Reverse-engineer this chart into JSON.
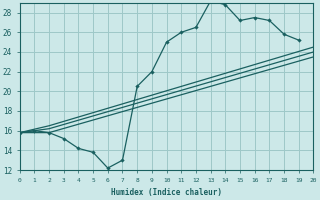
{
  "xlabel": "Humidex (Indice chaleur)",
  "bg_color": "#cce8e8",
  "grid_color": "#9ec8c8",
  "line_color": "#1a6060",
  "xlim": [
    0,
    20
  ],
  "ylim": [
    12,
    29
  ],
  "xticks": [
    0,
    1,
    2,
    3,
    4,
    5,
    6,
    7,
    8,
    9,
    10,
    11,
    12,
    13,
    14,
    15,
    16,
    17,
    18,
    19,
    20
  ],
  "yticks": [
    12,
    14,
    16,
    18,
    20,
    22,
    24,
    26,
    28
  ],
  "curve1_x": [
    0,
    1,
    2,
    3,
    4,
    5,
    6,
    7,
    8,
    9,
    10,
    11,
    12,
    13,
    14,
    15,
    16,
    17,
    18,
    19
  ],
  "curve1_y": [
    15.8,
    16.0,
    15.8,
    15.2,
    14.2,
    13.8,
    12.2,
    13.0,
    20.5,
    22.0,
    25.0,
    26.0,
    26.5,
    29.2,
    28.8,
    27.2,
    27.5,
    27.2,
    25.8,
    25.2
  ],
  "line2_x": [
    0,
    2,
    20
  ],
  "line2_y": [
    15.8,
    16.5,
    24.5
  ],
  "line3_x": [
    0,
    2,
    20
  ],
  "line3_y": [
    15.8,
    16.2,
    24.0
  ],
  "line4_x": [
    0,
    2,
    20
  ],
  "line4_y": [
    15.8,
    15.8,
    23.5
  ]
}
